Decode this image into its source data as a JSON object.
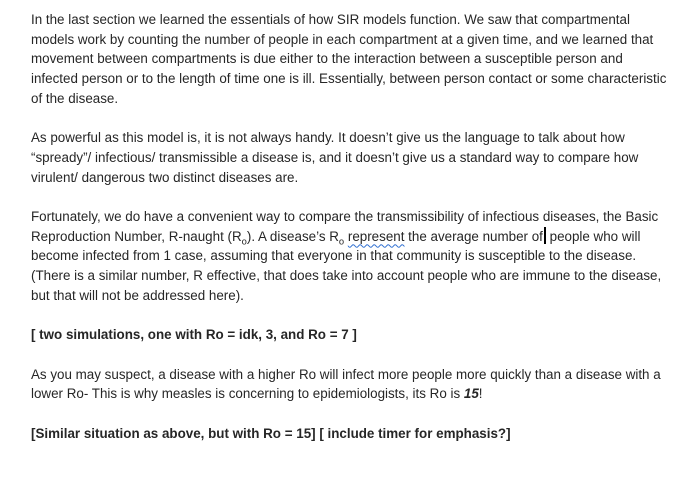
{
  "document": {
    "p1": "In the last section we learned the essentials of how SIR models function. We saw that compartmental models work by counting the number of people in each compartment at a given time, and we learned that movement between compartments is due either to the interaction between a susceptible person and infected person or to the length of time one is ill. Essentially, between person contact or some characteristic of the disease.",
    "p2": "As powerful as this model is, it is not always handy. It doesn’t give us the language to talk about how “spready”/ infectious/ transmissible a disease is, and it doesn’t give us a standard way to compare how virulent/ dangerous two distinct diseases are.",
    "p3": {
      "a": "Fortunately, we do have a convenient way to compare the transmissibility of infectious diseases, the Basic Reproduction Number, R-naught (R",
      "sub1": "o",
      "b": "). A disease’s R",
      "sub2": "o",
      "c": " ",
      "flagged": "represent",
      "d": " the average number of",
      "e": " people who will become infected from 1 case, assuming that everyone in that community is susceptible to the disease. (There is a similar number, R effective, that does take into account people who are immune to the disease, but that will not be addressed here)."
    },
    "p4": "[ two simulations, one with Ro = idk, 3, and Ro = 7 ]",
    "p5": {
      "a": "As you may suspect, a disease with a higher Ro will infect more people more quickly than a disease with a lower Ro- This is why measles is concerning to epidemiologists, its Ro is ",
      "emph": "15",
      "b": "!"
    },
    "p6": "[Similar situation as above, but with Ro = 15] [ include timer for emphasis?]"
  }
}
